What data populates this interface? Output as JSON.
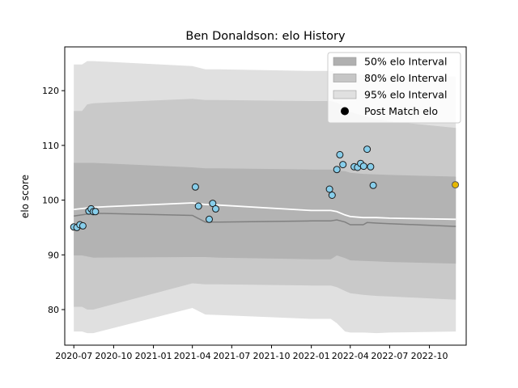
{
  "chart_data": {
    "type": "line",
    "title": "Ben Donaldson: elo History",
    "xlabel": "",
    "ylabel": "elo score",
    "x_tick_labels": [
      "2020-07",
      "2020-10",
      "2021-01",
      "2021-04",
      "2021-07",
      "2021-10",
      "2022-01",
      "2022-04",
      "2022-07",
      "2022-10"
    ],
    "x_ticks": [
      "2020-07-01",
      "2020-10-01",
      "2021-01-01",
      "2021-04-01",
      "2021-07-01",
      "2021-10-01",
      "2022-01-01",
      "2022-04-01",
      "2022-07-01",
      "2022-10-01"
    ],
    "y_ticks": [
      80,
      90,
      100,
      110,
      120
    ],
    "xlim": [
      "2020-06-10",
      "2022-12-25"
    ],
    "ylim": [
      73.5,
      128
    ],
    "grid": false,
    "legend_position": "top-right",
    "legend": [
      {
        "label": "50% elo Interval",
        "color": "#b0b0b0",
        "kind": "patch"
      },
      {
        "label": "80% elo Interval",
        "color": "#c6c6c6",
        "kind": "patch"
      },
      {
        "label": "95% elo Interval",
        "color": "#e0e0e0",
        "kind": "patch"
      },
      {
        "label": "Post Match elo",
        "color": "#000000",
        "kind": "marker"
      }
    ],
    "colors": {
      "band95": "#e0e0e0",
      "band80": "#c9c9c9",
      "band50": "#b3b3b3",
      "mean_line": "#ffffff",
      "lower_line": "#808080",
      "match_point": "#87ceeb",
      "current_point": "#e6b800"
    },
    "series": [
      {
        "key": "band95",
        "x": [
          "2020-07-01",
          "2020-07-20",
          "2020-08-01",
          "2020-08-15",
          "2021-04-01",
          "2021-05-01",
          "2021-06-01",
          "2022-01-01",
          "2022-02-15",
          "2022-03-01",
          "2022-03-20",
          "2022-04-01",
          "2022-05-01",
          "2022-06-01",
          "2022-07-01",
          "2022-12-01"
        ],
        "upper": [
          124.8,
          124.8,
          125.4,
          125.4,
          124.5,
          123.9,
          123.9,
          123.6,
          123.6,
          123.4,
          123.2,
          123.0,
          122.9,
          122.8,
          122.8,
          122.6
        ],
        "lower": [
          76.0,
          76.0,
          75.7,
          75.7,
          80.3,
          79.1,
          79.0,
          78.3,
          78.3,
          77.5,
          76.0,
          75.8,
          75.8,
          75.7,
          75.8,
          76.0
        ]
      },
      {
        "key": "band80",
        "x": [
          "2020-07-01",
          "2020-07-20",
          "2020-08-01",
          "2020-08-15",
          "2021-04-01",
          "2021-05-01",
          "2021-06-01",
          "2022-01-01",
          "2022-02-15",
          "2022-03-01",
          "2022-03-20",
          "2022-04-01",
          "2022-05-01",
          "2022-06-01",
          "2022-07-01",
          "2022-12-01"
        ],
        "upper": [
          116.3,
          116.3,
          117.5,
          117.7,
          118.5,
          118.3,
          118.3,
          118.1,
          118.1,
          117.8,
          117.0,
          116.1,
          115.4,
          114.8,
          114.4,
          113.2
        ],
        "lower": [
          80.5,
          80.5,
          80.0,
          80.0,
          84.8,
          84.6,
          84.6,
          84.4,
          84.4,
          84.1,
          83.4,
          83.0,
          82.7,
          82.5,
          82.4,
          81.8
        ]
      },
      {
        "key": "band50",
        "x": [
          "2020-07-01",
          "2020-07-20",
          "2020-08-01",
          "2020-08-15",
          "2021-04-01",
          "2021-05-01",
          "2021-06-01",
          "2022-01-01",
          "2022-02-15",
          "2022-03-01",
          "2022-03-20",
          "2022-04-01",
          "2022-05-01",
          "2022-06-01",
          "2022-07-01",
          "2022-12-01"
        ],
        "upper": [
          106.8,
          106.8,
          106.8,
          106.8,
          106.0,
          105.8,
          105.8,
          105.6,
          105.6,
          105.4,
          105.3,
          105.0,
          104.8,
          104.7,
          104.6,
          104.3
        ],
        "lower": [
          89.9,
          89.9,
          89.7,
          89.5,
          89.6,
          89.6,
          89.5,
          89.2,
          89.2,
          89.9,
          89.4,
          89.0,
          88.9,
          88.8,
          88.7,
          88.4
        ]
      },
      {
        "key": "mean_line",
        "x": [
          "2020-07-01",
          "2020-08-15",
          "2021-04-01",
          "2021-05-01",
          "2021-06-01",
          "2022-01-01",
          "2022-02-15",
          "2022-03-01",
          "2022-03-20",
          "2022-04-01",
          "2022-05-01",
          "2022-06-01",
          "2022-07-01",
          "2022-12-01"
        ],
        "y": [
          98.3,
          98.7,
          99.5,
          99.2,
          99.1,
          98.1,
          98.1,
          97.9,
          97.3,
          97.0,
          96.8,
          96.8,
          96.7,
          96.5
        ]
      },
      {
        "key": "lower_line",
        "x": [
          "2020-07-01",
          "2020-08-15",
          "2021-04-01",
          "2021-05-01",
          "2021-06-01",
          "2022-01-01",
          "2022-02-15",
          "2022-03-01",
          "2022-03-20",
          "2022-04-01",
          "2022-05-01",
          "2022-05-10",
          "2022-06-01",
          "2022-07-01",
          "2022-12-01"
        ],
        "y": [
          97.1,
          97.6,
          97.2,
          96.0,
          96.0,
          96.2,
          96.2,
          96.4,
          96.0,
          95.5,
          95.5,
          95.9,
          95.8,
          95.7,
          95.2
        ]
      },
      {
        "key": "matches",
        "name": "Post Match elo",
        "x": [
          "2020-07-01",
          "2020-07-08",
          "2020-07-15",
          "2020-07-22",
          "2020-08-05",
          "2020-08-10",
          "2020-08-15",
          "2020-08-20",
          "2021-04-08",
          "2021-04-15",
          "2021-05-10",
          "2021-05-18",
          "2021-05-25",
          "2022-02-12",
          "2022-02-18",
          "2022-03-01",
          "2022-03-08",
          "2022-03-15",
          "2022-04-10",
          "2022-04-18",
          "2022-04-25",
          "2022-05-02",
          "2022-05-10",
          "2022-05-18",
          "2022-05-24"
        ],
        "y": [
          95.1,
          95.0,
          95.5,
          95.3,
          98.0,
          98.4,
          97.9,
          97.9,
          102.4,
          98.9,
          96.5,
          99.4,
          98.4,
          102.0,
          100.9,
          105.6,
          108.3,
          106.5,
          106.1,
          106.0,
          106.7,
          106.2,
          109.3,
          106.1,
          102.7
        ]
      },
      {
        "key": "current",
        "x": [
          "2022-11-30"
        ],
        "y": [
          102.8
        ]
      }
    ]
  }
}
